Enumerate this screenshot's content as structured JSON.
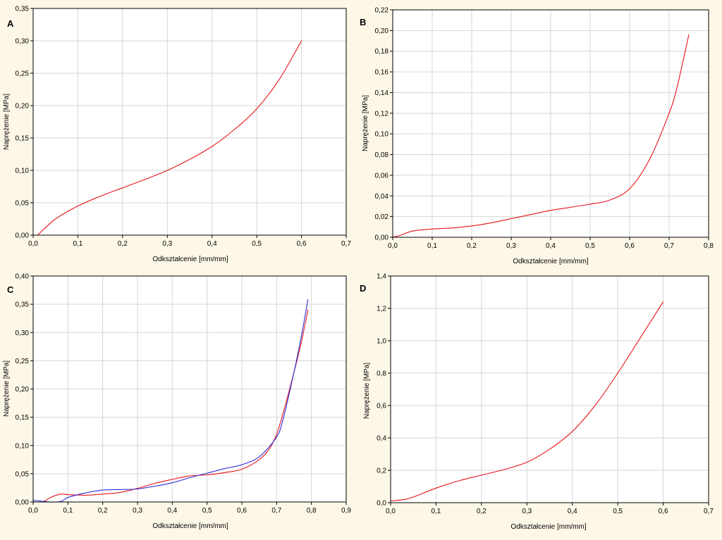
{
  "colors": {
    "red": "#e8141b",
    "blue": "#2a2ad8",
    "background": "#fdf7e7",
    "grid": "#d6d6d6"
  },
  "chart_data": [
    {
      "panel": "A",
      "type": "line",
      "xlabel": "Odkształcenie [mm/mm]",
      "ylabel": "Naprężenie [MPa]",
      "xlim": [
        0,
        0.7
      ],
      "ylim": [
        0,
        0.35
      ],
      "xticks": [
        "0,0",
        "0,1",
        "0,2",
        "0,3",
        "0,4",
        "0,5",
        "0,6",
        "0,7"
      ],
      "yticks": [
        "0,00",
        "0,05",
        "0,10",
        "0,15",
        "0,20",
        "0,25",
        "0,30",
        "0,35"
      ],
      "grid": true,
      "series": [
        {
          "color": "#e8141b",
          "x": [
            0.01,
            0.05,
            0.1,
            0.15,
            0.2,
            0.25,
            0.3,
            0.35,
            0.4,
            0.45,
            0.5,
            0.55,
            0.6
          ],
          "y": [
            0.0,
            0.025,
            0.045,
            0.06,
            0.073,
            0.086,
            0.1,
            0.117,
            0.137,
            0.163,
            0.195,
            0.24,
            0.3
          ]
        }
      ]
    },
    {
      "panel": "B",
      "type": "line",
      "xlabel": "Odkształcenie [mm/mm]",
      "ylabel": "Naprężenie [MPa]",
      "xlim": [
        0,
        0.8
      ],
      "ylim": [
        0,
        0.22
      ],
      "xticks": [
        "0,0",
        "0,1",
        "0,2",
        "0,3",
        "0,4",
        "0,5",
        "0,6",
        "0,7",
        "0,8"
      ],
      "yticks": [
        "0,00",
        "0,02",
        "0,04",
        "0,06",
        "0,08",
        "0,10",
        "0,12",
        "0,14",
        "0,16",
        "0,18",
        "0,20",
        "0,22"
      ],
      "grid": true,
      "series": [
        {
          "color": "#e8141b",
          "x": [
            0.0,
            0.02,
            0.05,
            0.1,
            0.15,
            0.2,
            0.25,
            0.3,
            0.35,
            0.4,
            0.45,
            0.5,
            0.55,
            0.6,
            0.65,
            0.7,
            0.72,
            0.75
          ],
          "y": [
            0.0,
            0.002,
            0.006,
            0.008,
            0.009,
            0.011,
            0.014,
            0.018,
            0.022,
            0.026,
            0.029,
            0.032,
            0.036,
            0.047,
            0.075,
            0.12,
            0.145,
            0.196
          ]
        }
      ]
    },
    {
      "panel": "C",
      "type": "line",
      "xlabel": "Odkształcenie [mm/mm]",
      "ylabel": "Naprężenie [MPa]",
      "xlim": [
        0,
        0.9
      ],
      "ylim": [
        0,
        0.4
      ],
      "xticks": [
        "0,0",
        "0,1",
        "0,2",
        "0,3",
        "0,4",
        "0,5",
        "0,6",
        "0,7",
        "0,8",
        "0,9"
      ],
      "yticks": [
        "0,00",
        "0,05",
        "0,10",
        "0,15",
        "0,20",
        "0,25",
        "0,30",
        "0,35",
        "0,40"
      ],
      "grid": true,
      "series": [
        {
          "color": "#e8141b",
          "x": [
            0.03,
            0.05,
            0.08,
            0.1,
            0.15,
            0.2,
            0.25,
            0.3,
            0.35,
            0.4,
            0.45,
            0.5,
            0.55,
            0.6,
            0.65,
            0.68,
            0.7,
            0.72,
            0.75,
            0.77,
            0.79
          ],
          "y": [
            0.0,
            0.008,
            0.014,
            0.013,
            0.012,
            0.014,
            0.017,
            0.024,
            0.033,
            0.04,
            0.046,
            0.048,
            0.052,
            0.058,
            0.075,
            0.095,
            0.12,
            0.16,
            0.23,
            0.28,
            0.34
          ]
        },
        {
          "color": "#2a2ad8",
          "x": [
            0.0,
            0.05,
            0.08,
            0.1,
            0.15,
            0.2,
            0.25,
            0.3,
            0.35,
            0.4,
            0.45,
            0.5,
            0.55,
            0.6,
            0.65,
            0.7,
            0.72,
            0.75,
            0.77,
            0.79
          ],
          "y": [
            0.003,
            0.0,
            0.001,
            0.008,
            0.016,
            0.021,
            0.022,
            0.023,
            0.028,
            0.034,
            0.043,
            0.051,
            0.059,
            0.066,
            0.08,
            0.115,
            0.15,
            0.23,
            0.29,
            0.358
          ]
        }
      ]
    },
    {
      "panel": "D",
      "type": "line",
      "xlabel": "Odkształcenie [mm/mm]",
      "ylabel": "Naprężenie [MPa]",
      "xlim": [
        0,
        0.7
      ],
      "ylim": [
        0,
        1.4
      ],
      "xticks": [
        "0,0",
        "0,1",
        "0,2",
        "0,3",
        "0,4",
        "0,5",
        "0,6",
        "0,7"
      ],
      "yticks": [
        "0,0",
        "0,2",
        "0,4",
        "0,6",
        "0,8",
        "1,0",
        "1,2",
        "1,4"
      ],
      "grid": true,
      "series": [
        {
          "color": "#e8141b",
          "x": [
            0.0,
            0.03,
            0.05,
            0.1,
            0.15,
            0.2,
            0.25,
            0.3,
            0.35,
            0.4,
            0.45,
            0.5,
            0.55,
            0.6
          ],
          "y": [
            0.01,
            0.02,
            0.035,
            0.09,
            0.135,
            0.17,
            0.205,
            0.25,
            0.33,
            0.44,
            0.6,
            0.8,
            1.02,
            1.24
          ]
        }
      ]
    }
  ]
}
